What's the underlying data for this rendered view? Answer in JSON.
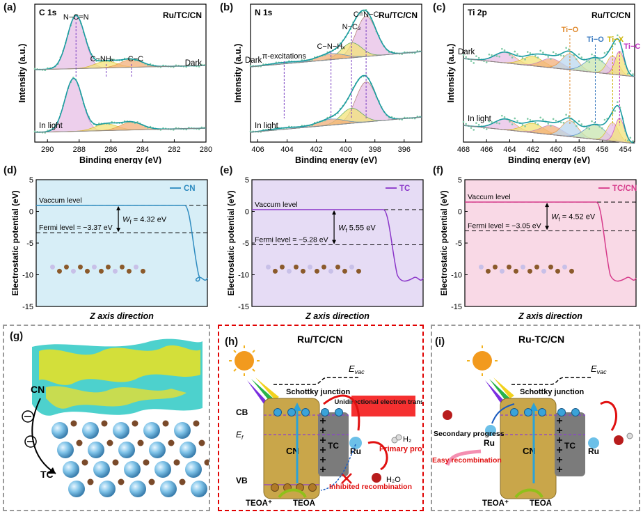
{
  "panel_labels": [
    "(a)",
    "(b)",
    "(c)",
    "(d)",
    "(e)",
    "(f)",
    "(g)",
    "(h)",
    "(i)"
  ],
  "chart_data": [
    {
      "type": "line",
      "id": "a",
      "title": "C 1s",
      "sample": "Ru/TC/CN",
      "xlabel": "Binding energy (eV)",
      "ylabel": "Intensity (a.u.)",
      "xlim": [
        290.8,
        280
      ],
      "xticks": [
        290,
        288,
        286,
        284,
        282,
        280
      ],
      "traces": [
        "Dark",
        "In light"
      ],
      "peaks": [
        {
          "label": "N−C=N",
          "center": 288.2
        },
        {
          "label": "C−NHₓ",
          "center": 286.3
        },
        {
          "label": "C−C",
          "center": 284.7
        }
      ],
      "shifts": [
        {
          "trace": "In light",
          "dark_center": 288.2,
          "light_center": 288.4
        }
      ]
    },
    {
      "type": "line",
      "id": "b",
      "title": "N 1s",
      "sample": "Ru/TC/CN",
      "xlabel": "Binding energy (eV)",
      "ylabel": "Intensity (a.u.)",
      "xlim": [
        406.5,
        394.8
      ],
      "xticks": [
        406,
        404,
        402,
        400,
        398,
        396
      ],
      "traces": [
        "Dark",
        "In light"
      ],
      "peaks": [
        {
          "label": "C=N−C",
          "center": 398.6
        },
        {
          "label": "N−C₃",
          "center": 399.6
        },
        {
          "label": "C−N−Hₓ",
          "center": 401.0
        },
        {
          "label": "π-excitations",
          "center": 404.2
        }
      ]
    },
    {
      "type": "line",
      "id": "c",
      "title": "Ti 2p",
      "sample": "Ru/TC/CN",
      "xlabel": "Binding energy (eV)",
      "ylabel": "Intensity (a.u.)",
      "xlim": [
        468,
        453.2
      ],
      "xticks": [
        468,
        466,
        464,
        462,
        460,
        458,
        456,
        454
      ],
      "traces": [
        "Dark",
        "In light"
      ],
      "peaks": [
        {
          "label": "Ti−O",
          "center": 458.8
        },
        {
          "label": "Ti−O",
          "center": 456.6
        },
        {
          "label": "Ti−X",
          "center": 455.1
        },
        {
          "label": "Ti−C",
          "center": 454.5
        }
      ]
    },
    {
      "type": "line",
      "id": "d",
      "series_name": "CN",
      "xlabel": "Z axis direction",
      "ylabel": "Electrostatic potential (eV)",
      "ylim": [
        -15,
        5
      ],
      "yticks": [
        5,
        0,
        -5,
        -10,
        -15
      ],
      "vacuum_level": 0.95,
      "fermi_level": -3.37,
      "labels": {
        "vacuum": "Vaccum level",
        "fermi": "Fermi level = −3.37 eV",
        "wf_symbol": "W",
        "wf_sub": "f",
        "wf_value": " = 4.32 eV"
      },
      "color": "#2e8bc0",
      "bg": "#d7eef7"
    },
    {
      "type": "line",
      "id": "e",
      "series_name": "TC",
      "xlabel": "Z axis direction",
      "ylabel": "Electrostatic potential (eV)",
      "ylim": [
        -15,
        5
      ],
      "yticks": [
        5,
        0,
        -5,
        -10,
        -15
      ],
      "vacuum_level": 0.27,
      "fermi_level": -5.28,
      "labels": {
        "vacuum": "Vaccum level",
        "fermi": "Fermi level = −5.28 eV",
        "wf_symbol": "W",
        "wf_sub": "f",
        "wf_value": " 5.55 eV"
      },
      "color": "#8a35c9",
      "bg": "#e6dcf5"
    },
    {
      "type": "line",
      "id": "f",
      "series_name": "TC/CN",
      "xlabel": "Z axis direction",
      "ylabel": "Electrostatic potential (eV)",
      "ylim": [
        -15,
        5
      ],
      "yticks": [
        5,
        0,
        -5,
        -10,
        -15
      ],
      "vacuum_level": 1.47,
      "fermi_level": -3.05,
      "labels": {
        "vacuum": "Vaccum level",
        "fermi": "Fermi level = −3.05 eV",
        "wf_symbol": "W",
        "wf_sub": "f",
        "wf_value": " = 4.52 eV"
      },
      "color": "#d6398a",
      "bg": "#f9d9e6"
    }
  ],
  "panel_g": {
    "cn": "CN",
    "tc": "TC"
  },
  "panel_h": {
    "title": "Ru/TC/CN",
    "evac": "E",
    "evac_sub": "vac",
    "schottky": "Schottky junction",
    "unidirectional": "Unidirectional electron transfer",
    "cb": "CB",
    "vb": "VB",
    "ef": "E",
    "ef_sub": "f",
    "cn": "CN",
    "tc": "TC",
    "ru": "Ru",
    "h2": "H₂",
    "h2o": "H₂O",
    "primary": "Primary progress",
    "inhibited": "Inhibited recombination",
    "teoa_plus": "TEOA⁺",
    "teoa": "TEOA"
  },
  "panel_i": {
    "title": "Ru-TC/CN",
    "evac": "E",
    "evac_sub": "vac",
    "schottky": "Schottky junction",
    "secondary": "Secondary progress",
    "easy": "Easy recombination",
    "cn": "CN",
    "tc": "TC",
    "ru": "Ru",
    "teoa_plus": "TEOA⁺",
    "teoa": "TEOA"
  },
  "colors": {
    "teal": "#1a9ba0",
    "red_box": "#e00000",
    "gold": "#c9a64a",
    "grey_tc": "#777"
  }
}
